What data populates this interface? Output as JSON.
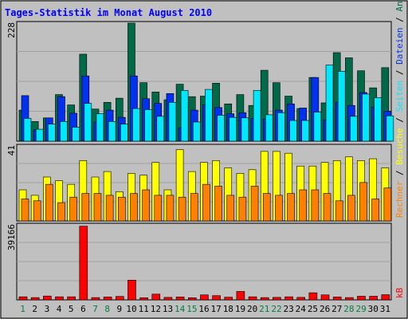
{
  "chart_data": {
    "type": "bar",
    "title": "Tages-Statistik im Monat August 2010",
    "categories": [
      "1",
      "2",
      "3",
      "4",
      "5",
      "6",
      "7",
      "8",
      "9",
      "10",
      "11",
      "12",
      "13",
      "14",
      "15",
      "16",
      "17",
      "18",
      "19",
      "20",
      "21",
      "22",
      "23",
      "24",
      "25",
      "26",
      "27",
      "28",
      "29",
      "30",
      "31"
    ],
    "weekend_days": [
      "1",
      "7",
      "8",
      "14",
      "15",
      "21",
      "22",
      "28",
      "29"
    ],
    "panels": [
      {
        "id": "top",
        "max_label": "228",
        "ylim": [
          0,
          228
        ],
        "series": [
          {
            "name": "Anfragen",
            "color": "#006a48",
            "values": [
              60,
              38,
              45,
              90,
              70,
              168,
              62,
              75,
              83,
              228,
              113,
              95,
              80,
              110,
              86,
              87,
              112,
              72,
              90,
              69,
              137,
              113,
              87,
              63,
              123,
              74,
              171,
              161,
              136,
              103,
              142
            ]
          },
          {
            "name": "Dateien",
            "color": "#0030f0",
            "values": [
              88,
              22,
              45,
              86,
              54,
              126,
              37,
              60,
              46,
              126,
              82,
              73,
              92,
              26,
              60,
              70,
              65,
              53,
              55,
              44,
              43,
              60,
              72,
              64,
              123,
              41,
              75,
              69,
              94,
              66,
              58
            ]
          },
          {
            "name": "Seiten",
            "color": "#00e8ff",
            "values": [
              44,
              23,
              33,
              38,
              27,
              73,
              53,
              38,
              33,
              63,
              61,
              48,
              75,
              98,
              37,
              100,
              50,
              46,
              45,
              98,
              51,
              55,
              40,
              40,
              56,
              147,
              135,
              48,
              91,
              84,
              49
            ]
          }
        ]
      },
      {
        "id": "middle",
        "max_label": "41",
        "ylim": [
          0,
          41
        ],
        "series": [
          {
            "name": "Besuche",
            "color": "#ffff00",
            "values": [
              17,
              14,
              24,
              22,
              20,
              33,
              24,
              27,
              16,
              26,
              25,
              32,
              17,
              39,
              27,
              32,
              33,
              29,
              26,
              28,
              38,
              38,
              37,
              30,
              30,
              32,
              33,
              35,
              33,
              34,
              29
            ]
          },
          {
            "name": "Rechner",
            "color": "#ff8000",
            "values": [
              12,
              11,
              20,
              10,
              13,
              15,
              15,
              14,
              13,
              15,
              17,
              14,
              14,
              13,
              15,
              20,
              19,
              14,
              13,
              19,
              15,
              14,
              15,
              17,
              17,
              15,
              11,
              14,
              21,
              12,
              18
            ]
          }
        ]
      },
      {
        "id": "bottom",
        "max_label": "39166",
        "ylim": [
          0,
          39166
        ],
        "series": [
          {
            "name": "kB",
            "color": "#ff0000",
            "values": [
              1600,
              1200,
              2000,
              1600,
              1600,
              38500,
              1200,
              1500,
              1800,
              10300,
              1100,
              3000,
              1300,
              1500,
              1100,
              2600,
              2200,
              1400,
              4400,
              1600,
              1200,
              1300,
              1600,
              1300,
              3700,
              2600,
              1500,
              1200,
              1900,
              1900,
              2700
            ]
          }
        ]
      }
    ],
    "legend_right": [
      {
        "text": "Anfragen",
        "color": "#006a48"
      },
      {
        "text": "/",
        "color": "#000000"
      },
      {
        "text": "Dateien",
        "color": "#0030f0"
      },
      {
        "text": "/",
        "color": "#000000"
      },
      {
        "text": "Seiten",
        "color": "#00e8ff"
      },
      {
        "text": "/",
        "color": "#000000"
      },
      {
        "text": "Besuche",
        "color": "#ffff00"
      },
      {
        "text": "/",
        "color": "#000000"
      },
      {
        "text": "Rechner",
        "color": "#ff8000"
      },
      {
        "text": "kB",
        "color": "#ff0000"
      }
    ],
    "grid": true
  }
}
